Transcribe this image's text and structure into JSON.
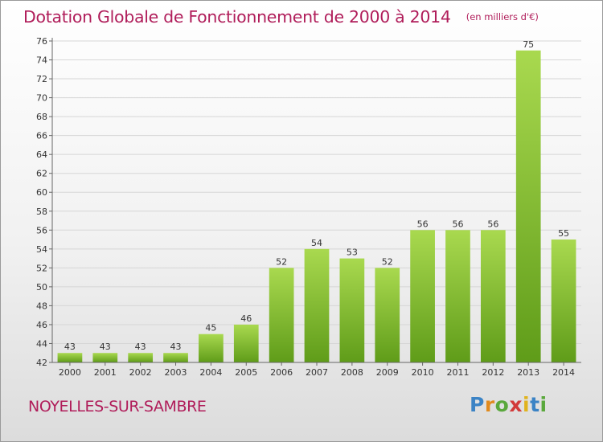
{
  "title": "Dotation Globale de Fonctionnement de 2000 à 2014",
  "subtitle": "(en milliers d'€)",
  "commune": "NOYELLES-SUR-SAMBRE",
  "logo": {
    "p": "P",
    "r": "r",
    "o": "o",
    "x": "x",
    "i1": "i",
    "t": "t",
    "i2": "i"
  },
  "colors": {
    "title": "#b01d5a",
    "bar_top": "#a9d94f",
    "bar_bottom": "#5f9c19"
  },
  "chart_data": {
    "type": "bar",
    "title": "Dotation Globale de Fonctionnement de 2000 à 2014",
    "subtitle": "(en milliers d'€)",
    "categories": [
      "2000",
      "2001",
      "2002",
      "2003",
      "2004",
      "2005",
      "2006",
      "2007",
      "2008",
      "2009",
      "2010",
      "2011",
      "2012",
      "2013",
      "2014"
    ],
    "values": [
      43,
      43,
      43,
      43,
      45,
      46,
      52,
      54,
      53,
      52,
      56,
      56,
      56,
      75,
      55
    ],
    "ylim": [
      42,
      76
    ],
    "yticks": [
      42,
      44,
      46,
      48,
      50,
      52,
      54,
      56,
      58,
      60,
      62,
      64,
      66,
      68,
      70,
      72,
      74,
      76
    ],
    "grid": true,
    "xlabel": "",
    "ylabel": ""
  }
}
